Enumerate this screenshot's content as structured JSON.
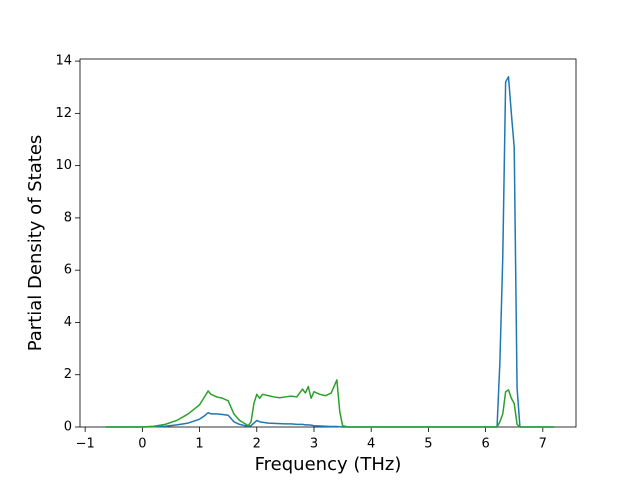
{
  "chart_data": {
    "type": "line",
    "xlabel": "Frequency (THz)",
    "ylabel": "Partial Density of States",
    "x": [
      -0.64,
      0,
      0.2,
      0.4,
      0.6,
      0.8,
      1.0,
      1.1,
      1.15,
      1.2,
      1.3,
      1.4,
      1.5,
      1.6,
      1.7,
      1.8,
      1.85,
      1.9,
      1.95,
      2.0,
      2.05,
      2.1,
      2.2,
      2.3,
      2.4,
      2.5,
      2.6,
      2.7,
      2.8,
      2.85,
      2.9,
      2.95,
      3.0,
      3.1,
      3.2,
      3.3,
      3.4,
      3.45,
      3.5,
      3.6,
      6.2,
      6.25,
      6.3,
      6.35,
      6.4,
      6.45,
      6.5,
      6.55,
      6.6,
      7.2
    ],
    "series": [
      {
        "color": "#1f77b4",
        "values": [
          0,
          0,
          0.01,
          0.03,
          0.08,
          0.15,
          0.3,
          0.45,
          0.55,
          0.5,
          0.5,
          0.48,
          0.45,
          0.2,
          0.1,
          0.05,
          0.03,
          0.05,
          0.15,
          0.25,
          0.2,
          0.18,
          0.15,
          0.14,
          0.13,
          0.12,
          0.12,
          0.1,
          0.1,
          0.08,
          0.08,
          0.07,
          0.05,
          0.04,
          0.03,
          0.02,
          0.02,
          0.01,
          0,
          0,
          0,
          2.5,
          6.5,
          13.2,
          13.4,
          12,
          10.7,
          1.5,
          0,
          0
        ]
      },
      {
        "color": "#2ca02c",
        "values": [
          0,
          0,
          0.03,
          0.1,
          0.25,
          0.5,
          0.85,
          1.2,
          1.38,
          1.25,
          1.15,
          1.1,
          1.0,
          0.5,
          0.25,
          0.12,
          0.05,
          0.2,
          0.9,
          1.25,
          1.1,
          1.25,
          1.2,
          1.15,
          1.12,
          1.15,
          1.18,
          1.15,
          1.45,
          1.3,
          1.55,
          1.1,
          1.35,
          1.25,
          1.2,
          1.3,
          1.8,
          0.6,
          0.05,
          0,
          0,
          0.2,
          0.5,
          1.35,
          1.42,
          1.1,
          0.9,
          0.1,
          0,
          0
        ]
      }
    ],
    "xlim": [
      -1.09,
      7.58
    ],
    "ylim": [
      0,
      14.08
    ],
    "xticks": [
      {
        "value": -1,
        "label": "−1"
      },
      0,
      1,
      2,
      3,
      4,
      5,
      6,
      7
    ],
    "yticks": [
      0,
      2,
      4,
      6,
      8,
      10,
      12,
      14
    ]
  }
}
